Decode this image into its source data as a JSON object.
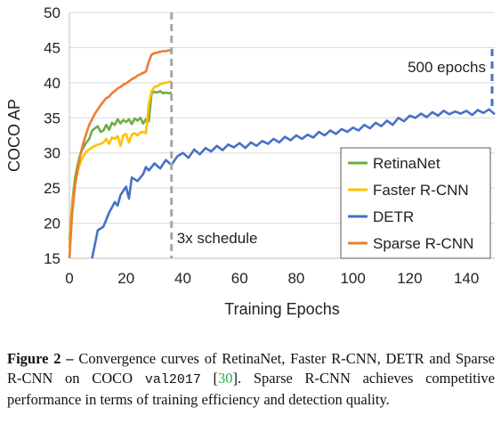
{
  "chart_data": {
    "type": "line",
    "xlabel": "Training Epochs",
    "ylabel": "COCO AP",
    "xlim": [
      0,
      150
    ],
    "ylim": [
      15,
      50
    ],
    "x_ticks": [
      "0",
      "20",
      "40",
      "60",
      "80",
      "100",
      "120",
      "140"
    ],
    "y_ticks": [
      "15",
      "20",
      "25",
      "30",
      "35",
      "40",
      "45",
      "50"
    ],
    "legend_position": "bottom-right",
    "annotations": [
      {
        "text": "3x schedule",
        "x": 36
      },
      {
        "text": "500 epochs",
        "x": 150
      }
    ],
    "series": [
      {
        "name": "RetinaNet",
        "color": "#70ad47",
        "x": [
          0,
          1,
          2,
          3,
          4,
          5,
          6,
          7,
          8,
          9,
          10,
          11,
          12,
          13,
          14,
          15,
          16,
          17,
          18,
          19,
          20,
          21,
          22,
          23,
          24,
          25,
          26,
          27,
          28,
          29,
          30,
          31,
          32,
          33,
          34,
          35,
          36
        ],
        "y": [
          17.5,
          23.0,
          26.5,
          28.5,
          30.0,
          30.8,
          31.5,
          32.0,
          33.2,
          33.5,
          33.8,
          33.0,
          33.2,
          34.0,
          33.3,
          34.3,
          34.0,
          34.8,
          34.2,
          34.7,
          34.4,
          34.8,
          34.1,
          34.9,
          34.6,
          35.0,
          34.2,
          34.8,
          34.5,
          38.5,
          38.7,
          38.6,
          38.8,
          38.5,
          38.6,
          38.5,
          38.6
        ]
      },
      {
        "name": "Faster R-CNN",
        "color": "#ffc000",
        "x": [
          0,
          1,
          2,
          3,
          4,
          5,
          6,
          7,
          8,
          9,
          10,
          11,
          12,
          13,
          14,
          15,
          16,
          17,
          18,
          19,
          20,
          21,
          22,
          23,
          24,
          25,
          26,
          27,
          28,
          29,
          30,
          31,
          32,
          33,
          34,
          35,
          36
        ],
        "y": [
          16.5,
          22.5,
          25.5,
          27.5,
          28.8,
          29.6,
          30.2,
          30.5,
          30.8,
          31.0,
          31.2,
          31.3,
          31.5,
          32.0,
          31.3,
          32.2,
          32.0,
          32.4,
          31.0,
          32.5,
          32.7,
          31.5,
          32.6,
          32.8,
          32.5,
          32.9,
          33.0,
          32.8,
          37.0,
          38.8,
          39.4,
          39.5,
          39.8,
          39.9,
          40.0,
          40.1,
          40.2
        ]
      },
      {
        "name": "DETR",
        "color": "#4472c4",
        "x": [
          8,
          10,
          12,
          14,
          16,
          17,
          18,
          20,
          21,
          22,
          24,
          26,
          27,
          28,
          30,
          32,
          34,
          36,
          38,
          40,
          42,
          44,
          46,
          48,
          50,
          52,
          54,
          56,
          58,
          60,
          62,
          64,
          66,
          68,
          70,
          72,
          74,
          76,
          78,
          80,
          82,
          84,
          86,
          88,
          90,
          92,
          94,
          96,
          98,
          100,
          102,
          104,
          106,
          108,
          110,
          112,
          114,
          116,
          118,
          120,
          122,
          124,
          126,
          128,
          130,
          132,
          134,
          136,
          138,
          140,
          142,
          144,
          146,
          148,
          150
        ],
        "y": [
          15.0,
          19.0,
          19.5,
          21.5,
          23.0,
          22.5,
          24.0,
          25.2,
          23.5,
          26.5,
          26.0,
          27.0,
          28.0,
          27.5,
          28.5,
          27.8,
          29.0,
          28.3,
          29.5,
          30.0,
          29.3,
          30.5,
          29.8,
          30.7,
          30.2,
          31.0,
          30.4,
          31.2,
          30.8,
          31.4,
          30.7,
          31.5,
          31.0,
          31.7,
          31.3,
          32.0,
          31.5,
          32.3,
          31.8,
          32.5,
          32.0,
          32.6,
          32.2,
          33.0,
          32.5,
          33.2,
          32.7,
          33.4,
          33.0,
          33.6,
          33.2,
          34.0,
          33.5,
          34.3,
          33.8,
          34.6,
          34.0,
          35.0,
          34.5,
          35.3,
          35.0,
          35.6,
          35.1,
          35.8,
          35.3,
          36.0,
          35.5,
          35.9,
          35.6,
          36.0,
          35.4,
          36.1,
          35.7,
          36.2,
          35.5
        ]
      },
      {
        "name": "Sparse R-CNN",
        "color": "#ed7d31",
        "x": [
          0,
          1,
          2,
          3,
          4,
          5,
          6,
          7,
          8,
          9,
          10,
          11,
          12,
          13,
          14,
          15,
          16,
          17,
          18,
          19,
          20,
          21,
          22,
          23,
          24,
          25,
          26,
          27,
          28,
          29,
          30,
          31,
          32,
          33,
          34,
          35,
          36
        ],
        "y": [
          15.0,
          21.5,
          25.5,
          28.0,
          30.0,
          31.5,
          32.8,
          34.0,
          34.8,
          35.6,
          36.2,
          36.8,
          37.3,
          37.8,
          38.0,
          38.5,
          38.8,
          39.2,
          39.4,
          39.7,
          39.9,
          40.2,
          40.5,
          40.7,
          41.0,
          41.2,
          41.4,
          41.6,
          43.0,
          44.0,
          44.2,
          44.3,
          44.4,
          44.5,
          44.5,
          44.6,
          44.6
        ]
      }
    ]
  },
  "caption": {
    "label": "Figure 2 –",
    "text_1": " Convergence curves of RetinaNet, Faster R-CNN, DETR and Sparse R-CNN on COCO ",
    "code": "val2017",
    "text_2": " [",
    "ref": "30",
    "text_3": "]. Sparse R-CNN achieves competitive performance in terms of training efficiency and detection quality."
  }
}
